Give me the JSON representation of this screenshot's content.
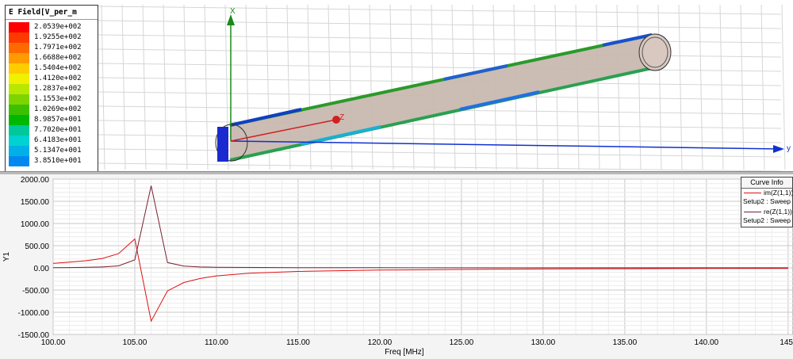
{
  "legend": {
    "title": "E Field[V_per_m",
    "entries": [
      {
        "value": "2.0539e+002",
        "color": "#ff0000"
      },
      {
        "value": "1.9255e+002",
        "color": "#ff3a00"
      },
      {
        "value": "1.7971e+002",
        "color": "#ff6a00"
      },
      {
        "value": "1.6688e+002",
        "color": "#ff9a00"
      },
      {
        "value": "1.5404e+002",
        "color": "#ffcc00"
      },
      {
        "value": "1.4120e+002",
        "color": "#f0f000"
      },
      {
        "value": "1.2837e+002",
        "color": "#b8e800"
      },
      {
        "value": "1.1553e+002",
        "color": "#7ed400"
      },
      {
        "value": "1.0269e+002",
        "color": "#3cc000"
      },
      {
        "value": "8.9857e+001",
        "color": "#00b800"
      },
      {
        "value": "7.7020e+001",
        "color": "#00c89a"
      },
      {
        "value": "6.4183e+001",
        "color": "#00d2d2"
      },
      {
        "value": "5.1347e+001",
        "color": "#00b0e6"
      },
      {
        "value": "3.8510e+001",
        "color": "#0088f0"
      }
    ]
  },
  "axes3d": {
    "x_label": "X",
    "y_label": "y",
    "z_label": "Z"
  },
  "curve_info": {
    "title": "Curve Info",
    "curves": [
      {
        "name": "im(Z(1,1))",
        "setup": "Setup2 : Sweep",
        "color": "#e01010"
      },
      {
        "name": "re(Z(1,1))",
        "setup": "Setup2 : Sweep",
        "color": "#7a2030"
      }
    ]
  },
  "chart_data": {
    "type": "line",
    "xlabel": "Freq [MHz]",
    "ylabel": "Y1",
    "xlim": [
      100,
      145
    ],
    "ylim": [
      -1500,
      2000
    ],
    "x_ticks": [
      "100.00",
      "105.00",
      "110.00",
      "115.00",
      "120.00",
      "125.00",
      "130.00",
      "135.00",
      "140.00",
      "145"
    ],
    "y_ticks": [
      "2000.00",
      "1500.00",
      "1000.00",
      "500.00",
      "0.00",
      "-500.00",
      "-1000.00",
      "-1500.00"
    ],
    "grid": true,
    "series": [
      {
        "name": "im(Z(1,1))",
        "color": "#e01010",
        "x": [
          100,
          101,
          102,
          103,
          104,
          105,
          106,
          107,
          108,
          109,
          110,
          112,
          115,
          120,
          125,
          130,
          135,
          140,
          145
        ],
        "y": [
          100,
          130,
          160,
          210,
          320,
          650,
          -1200,
          -520,
          -330,
          -240,
          -180,
          -120,
          -80,
          -50,
          -35,
          -25,
          -20,
          -15,
          -12
        ]
      },
      {
        "name": "re(Z(1,1))",
        "color": "#7a2030",
        "x": [
          100,
          101,
          102,
          103,
          104,
          105,
          106,
          107,
          108,
          109,
          110,
          115,
          120,
          125,
          130,
          135,
          140,
          145
        ],
        "y": [
          5,
          8,
          12,
          20,
          45,
          180,
          1850,
          120,
          40,
          20,
          12,
          5,
          3,
          2,
          2,
          1,
          1,
          1
        ]
      }
    ]
  }
}
